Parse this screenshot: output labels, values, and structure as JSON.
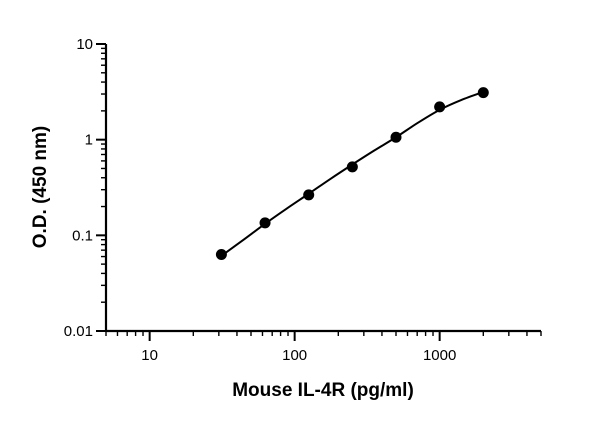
{
  "chart_data": {
    "type": "scatter",
    "title": "",
    "xlabel": "Mouse IL-4R (pg/ml)",
    "ylabel": "O.D. (450 nm)",
    "x_scale": "log",
    "y_scale": "log",
    "xlim": [
      5,
      5000
    ],
    "ylim": [
      0.01,
      10
    ],
    "x_ticks": [
      {
        "value": 10,
        "label": "10"
      },
      {
        "value": 100,
        "label": "100"
      },
      {
        "value": 1000,
        "label": "1000"
      }
    ],
    "y_ticks": [
      {
        "value": 0.01,
        "label": "0.01"
      },
      {
        "value": 0.1,
        "label": "0.1"
      },
      {
        "value": 1,
        "label": "1"
      },
      {
        "value": 10,
        "label": "10"
      }
    ],
    "grid": false,
    "legend": "none",
    "point_color": "#000000",
    "line_color": "#000000",
    "series": [
      {
        "x": [
          31.25,
          62.5,
          125,
          250,
          500,
          1000,
          2000
        ],
        "y": [
          0.063,
          0.135,
          0.265,
          0.52,
          1.06,
          2.2,
          3.1
        ]
      }
    ],
    "fit_curve": {
      "x": [
        31.25,
        44,
        62.5,
        88,
        125,
        177,
        250,
        354,
        500,
        707,
        1000,
        1414,
        2000
      ],
      "y": [
        0.061,
        0.089,
        0.132,
        0.19,
        0.272,
        0.39,
        0.55,
        0.77,
        1.06,
        1.5,
        2.05,
        2.6,
        3.15
      ]
    }
  }
}
